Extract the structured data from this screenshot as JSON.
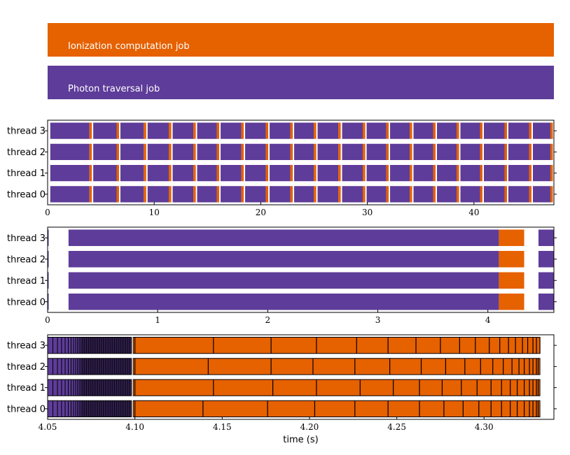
{
  "colors": {
    "ionization": "#e66100",
    "photon": "#5e3c99"
  },
  "legend": [
    {
      "label": "Ionization computation job",
      "color": "#e66100"
    },
    {
      "label": "Photon traversal job",
      "color": "#5e3c99"
    }
  ],
  "chart_data": [
    {
      "type": "timeline",
      "threads": [
        "thread 3",
        "thread 2",
        "thread 1",
        "thread 0"
      ],
      "xlim": [
        0,
        47.5
      ],
      "xticks": [
        0,
        10,
        20,
        30,
        40
      ],
      "xlabel": "",
      "cycle_ends": [
        4.15,
        6.7,
        9.25,
        11.6,
        13.9,
        16.1,
        18.4,
        20.7,
        23.0,
        25.2,
        27.5,
        29.8,
        32.0,
        34.2,
        36.4,
        38.6,
        40.8,
        43.1,
        45.4,
        47.4
      ],
      "ionization_duration": 0.23
    },
    {
      "type": "timeline",
      "threads": [
        "thread 3",
        "thread 2",
        "thread 1",
        "thread 0"
      ],
      "xlim": [
        0,
        4.6
      ],
      "xticks": [
        0,
        1,
        2,
        3,
        4
      ],
      "xlabel": "",
      "photon_job": [
        0.19,
        4.1
      ],
      "ionization_job": [
        4.1,
        4.33
      ],
      "next_photon_start": 4.46
    },
    {
      "type": "timeline",
      "threads": [
        "thread 3",
        "thread 2",
        "thread 1",
        "thread 0"
      ],
      "xlim": [
        4.05,
        4.34
      ],
      "xticks": [
        4.05,
        4.1,
        4.15,
        4.2,
        4.25,
        4.3
      ],
      "xlabel": "time (s)",
      "photon_job": [
        4.05,
        4.098
      ],
      "ionization_job": [
        4.099,
        4.332
      ],
      "ionization_boundaries": [
        [
          4.1,
          4.145,
          4.178,
          4.204,
          4.227,
          4.245,
          4.261,
          4.275,
          4.286,
          4.295,
          4.303,
          4.309,
          4.314,
          4.318,
          4.322,
          4.325,
          4.328,
          4.33,
          4.332
        ],
        [
          4.1,
          4.142,
          4.178,
          4.202,
          4.226,
          4.246,
          4.264,
          4.278,
          4.289,
          4.298,
          4.305,
          4.311,
          4.316,
          4.32,
          4.323,
          4.326,
          4.328,
          4.33,
          4.331
        ],
        [
          4.1,
          4.145,
          4.179,
          4.204,
          4.229,
          4.248,
          4.263,
          4.276,
          4.287,
          4.296,
          4.304,
          4.31,
          4.315,
          4.319,
          4.323,
          4.326,
          4.328,
          4.33,
          4.331
        ],
        [
          4.1,
          4.139,
          4.176,
          4.203,
          4.226,
          4.245,
          4.263,
          4.277,
          4.288,
          4.297,
          4.304,
          4.31,
          4.315,
          4.319,
          4.323,
          4.326,
          4.328,
          4.33,
          4.331
        ]
      ]
    }
  ]
}
